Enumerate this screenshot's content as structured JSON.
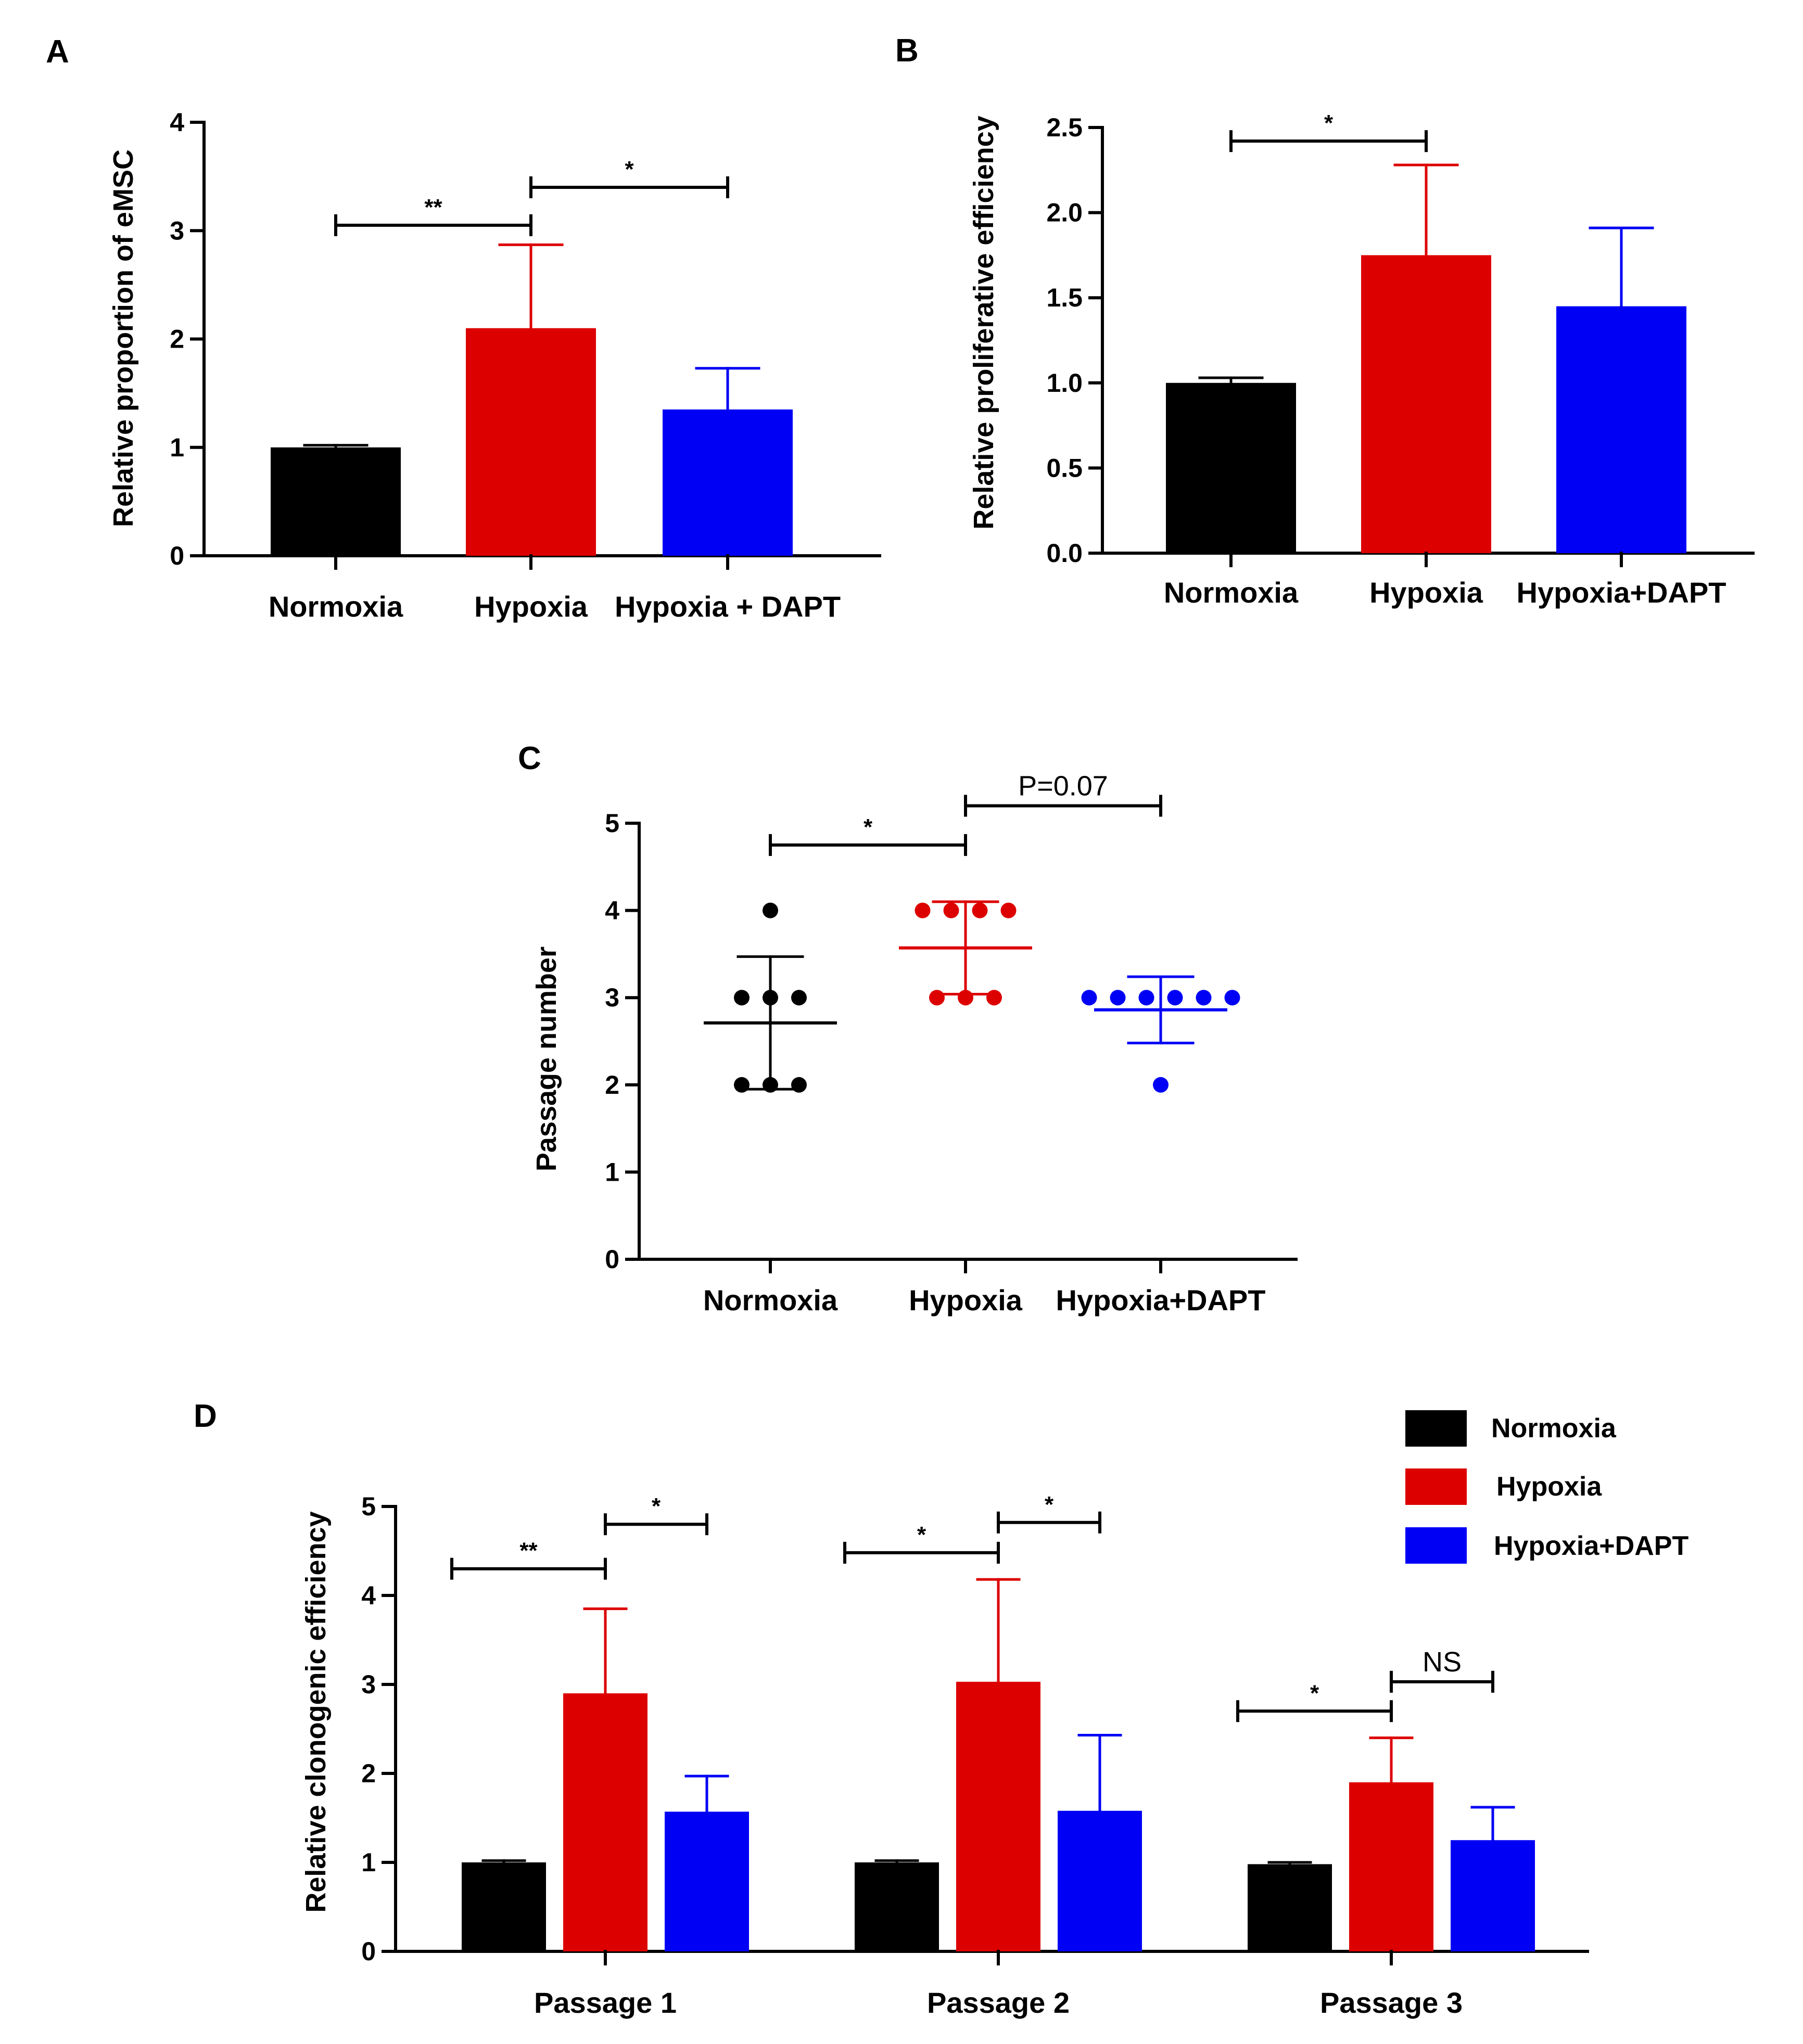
{
  "colors": {
    "normoxia": "#000000",
    "hypoxia": "#dd0000",
    "dapt": "#0000f5",
    "axis": "#000000"
  },
  "legend": {
    "items": [
      {
        "label": "Normoxia",
        "color": "#000000"
      },
      {
        "label": "Hypoxia",
        "color": "#dd0000"
      },
      {
        "label": "Hypoxia+DAPT",
        "color": "#0000f5"
      }
    ]
  },
  "chart_data": [
    {
      "panel": "A",
      "type": "bar",
      "ylabel": "Relative  proportion of eMSC",
      "ylim": [
        0,
        4
      ],
      "yticks": [
        "0",
        "1",
        "2",
        "3",
        "4"
      ],
      "categories": [
        "Normoxia",
        "Hypoxia",
        "Hypoxia  + DAPT"
      ],
      "values": [
        1.0,
        2.1,
        1.35
      ],
      "errors": [
        0.02,
        0.77,
        0.38
      ],
      "significance": [
        {
          "from": 0,
          "to": 1,
          "label": "**",
          "y": 3.05
        },
        {
          "from": 1,
          "to": 2,
          "label": "*",
          "y": 3.4
        }
      ]
    },
    {
      "panel": "B",
      "type": "bar",
      "ylabel": "Relative  proliferative  efficiency",
      "ylim": [
        0,
        2.5
      ],
      "yticks": [
        "0.0",
        "0.5",
        "1.0",
        "1.5",
        "2.0",
        "2.5"
      ],
      "categories": [
        "Normoxia",
        "Hypoxia",
        "Hypoxia+DAPT"
      ],
      "values": [
        1.0,
        1.75,
        1.45
      ],
      "errors": [
        0.03,
        0.53,
        0.46
      ],
      "significance": [
        {
          "from": 0,
          "to": 1,
          "label": "*",
          "y": 2.42
        }
      ]
    },
    {
      "panel": "C",
      "type": "scatter",
      "ylabel": "Passage  number",
      "ylim": [
        0,
        5
      ],
      "yticks": [
        "0",
        "1",
        "2",
        "3",
        "4",
        "5"
      ],
      "categories": [
        "Normoxia",
        "Hypoxia",
        "Hypoxia+DAPT"
      ],
      "points": [
        [
          4,
          3,
          3,
          3,
          2,
          2,
          2
        ],
        [
          4,
          4,
          4,
          4,
          3,
          3,
          3
        ],
        [
          3,
          3,
          3,
          3,
          3,
          3,
          2
        ]
      ],
      "means": [
        2.71,
        3.57,
        2.86
      ],
      "sd": [
        0.76,
        0.53,
        0.38
      ],
      "significance": [
        {
          "from": 0,
          "to": 1,
          "label": "*",
          "y": 4.75
        },
        {
          "from": 1,
          "to": 2,
          "label": "P=0.07",
          "y": 5.2
        }
      ]
    },
    {
      "panel": "D",
      "type": "bar",
      "ylabel": "Relative  clonogenic  efficiency",
      "ylim": [
        0,
        5
      ],
      "yticks": [
        "0",
        "1",
        "2",
        "3",
        "4",
        "5"
      ],
      "categories": [
        "Passage  1",
        "Passage  2",
        "Passage  3"
      ],
      "series": [
        {
          "name": "Normoxia",
          "values": [
            1.0,
            1.0,
            0.98
          ],
          "errors": [
            0.02,
            0.02,
            0.02
          ]
        },
        {
          "name": "Hypoxia",
          "values": [
            2.9,
            3.03,
            1.9
          ],
          "errors": [
            0.95,
            1.15,
            0.5
          ]
        },
        {
          "name": "Hypoxia+DAPT",
          "values": [
            1.57,
            1.58,
            1.25
          ],
          "errors": [
            0.4,
            0.85,
            0.37
          ]
        }
      ],
      "significance": [
        {
          "group": 0,
          "from": 0,
          "to": 1,
          "label": "**",
          "y": 4.3
        },
        {
          "group": 0,
          "from": 1,
          "to": 2,
          "label": "*",
          "y": 4.8
        },
        {
          "group": 1,
          "from": 0,
          "to": 1,
          "label": "*",
          "y": 4.48
        },
        {
          "group": 1,
          "from": 1,
          "to": 2,
          "label": "*",
          "y": 4.82
        },
        {
          "group": 2,
          "from": 0,
          "to": 1,
          "label": "*",
          "y": 2.7
        },
        {
          "group": 2,
          "from": 1,
          "to": 2,
          "label": "NS",
          "y": 3.03
        }
      ]
    }
  ]
}
